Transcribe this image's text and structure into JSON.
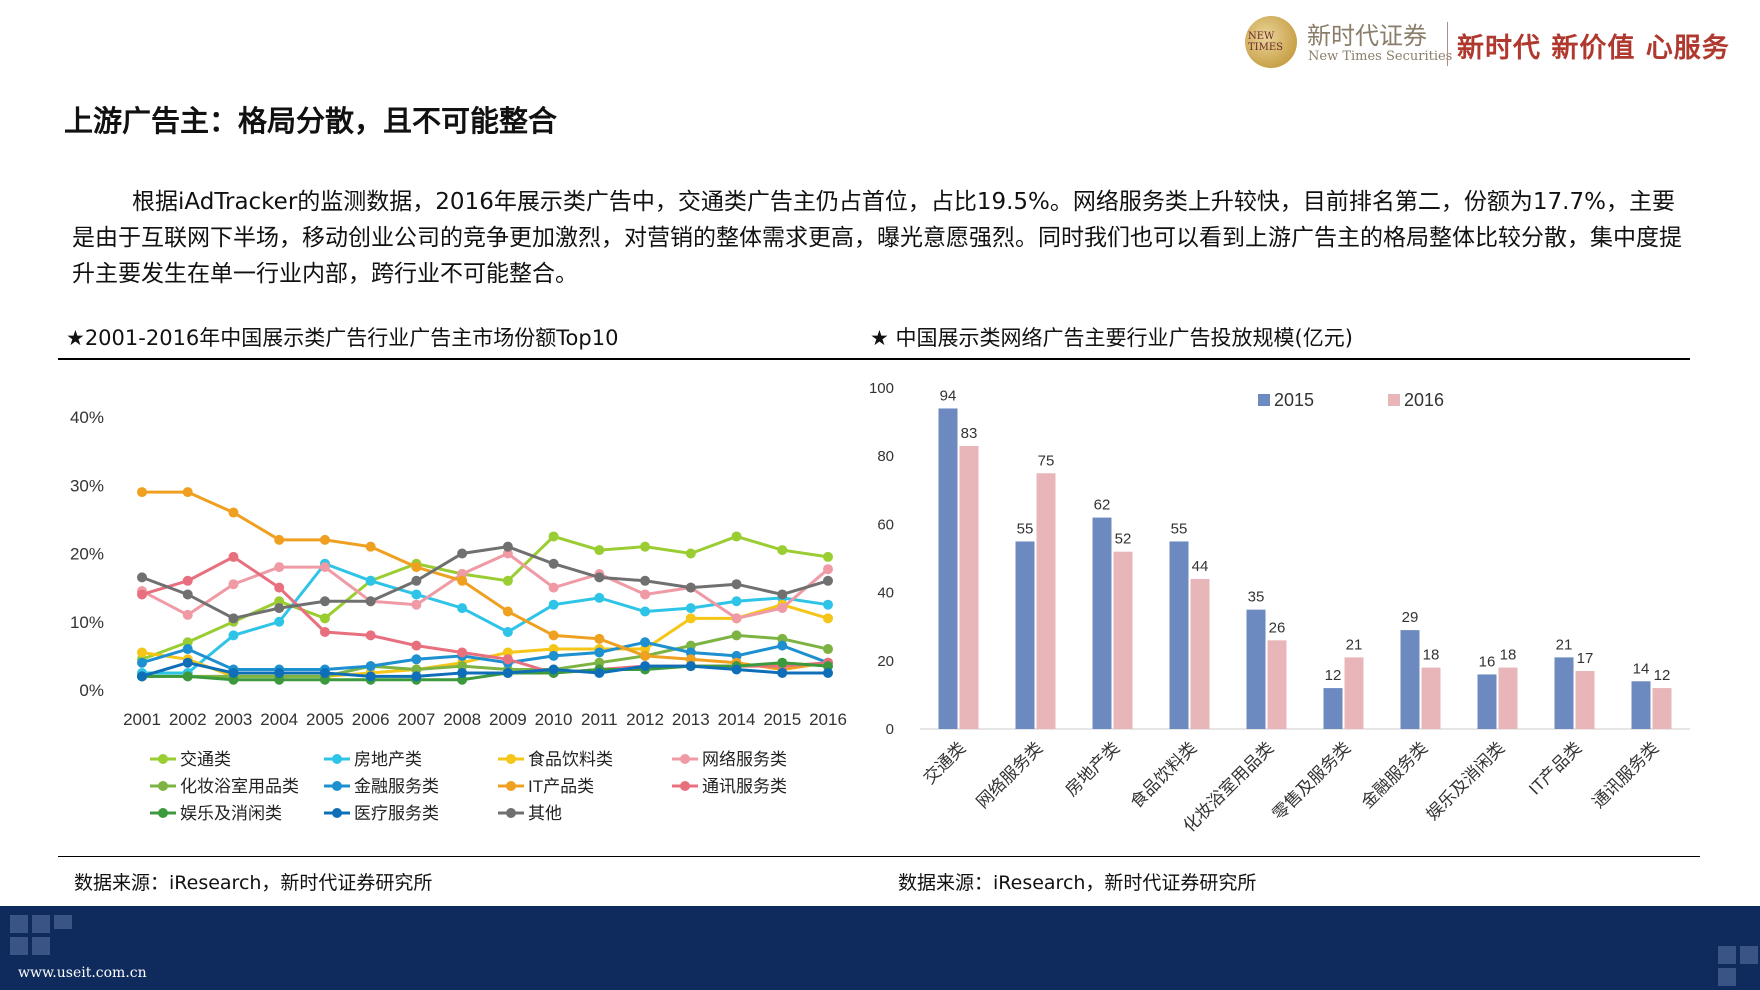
{
  "header": {
    "logo_mark": "NEW TIMES",
    "logo_cn": "新时代证券",
    "logo_en": "New Times Securities",
    "slogan": "新时代 新价值 心服务"
  },
  "title": "上游广告主：格局分散，且不可能整合",
  "paragraph": "根据iAdTracker的监测数据，2016年展示类广告中，交通类广告主仍占首位，占比19.5%。网络服务类上升较快，目前排名第二，份额为17.7%，主要是由于互联网下半场，移动创业公司的竞争更加激烈，对营销的整体需求更高，曝光意愿强烈。同时我们也可以看到上游广告主的格局整体比较分散，集中度提升主要发生在单一行业内部，跨行业不可能整合。",
  "left_chart_title": "★2001-2016年中国展示类广告行业广告主市场份额Top10",
  "right_chart_title": "★ 中国展示类网络广告主要行业广告投放规模(亿元)",
  "left_source": "数据来源：iResearch，新时代证券研究所",
  "right_source": "数据来源：iResearch，新时代证券研究所",
  "footer": {
    "url": "www.useit.com.cn"
  },
  "chart_data": [
    {
      "type": "line",
      "title": "★2001-2016年中国展示类广告行业广告主市场份额Top10",
      "x": [
        "2001",
        "2002",
        "2003",
        "2004",
        "2005",
        "2006",
        "2007",
        "2008",
        "2009",
        "2010",
        "2011",
        "2012",
        "2013",
        "2014",
        "2015",
        "2016"
      ],
      "ylim": [
        0,
        40
      ],
      "yticks": [
        "0%",
        "10%",
        "20%",
        "30%",
        "40%"
      ],
      "grid": false,
      "legend": "bottom",
      "series": [
        {
          "name": "交通类",
          "color": "#9acd32",
          "values": [
            4.5,
            7,
            10,
            13,
            10.5,
            16,
            18.5,
            17,
            16,
            22.5,
            20.5,
            21,
            20,
            22.5,
            20.5,
            19.5
          ]
        },
        {
          "name": "房地产类",
          "color": "#2ec4e8",
          "values": [
            2.5,
            2.5,
            8,
            10,
            18.5,
            16,
            14,
            12,
            8.5,
            12.5,
            13.5,
            11.5,
            12,
            13,
            13.5,
            12.5
          ]
        },
        {
          "name": "食品饮料类",
          "color": "#f5c518",
          "values": [
            5.5,
            4.5,
            2,
            2,
            2,
            2.5,
            3,
            4,
            5.5,
            6,
            6,
            6,
            10.5,
            10.5,
            12.5,
            10.5
          ]
        },
        {
          "name": "网络服务类",
          "color": "#ef9aa5",
          "values": [
            14.5,
            11,
            15.5,
            18,
            18,
            13,
            12.5,
            17,
            20,
            15,
            17,
            14,
            15,
            10.5,
            12,
            17.7
          ]
        },
        {
          "name": "化妆浴室用品类",
          "color": "#7cb342",
          "values": [
            2,
            2,
            2,
            2,
            2,
            3.5,
            3,
            3.5,
            3,
            3,
            4,
            5,
            6.5,
            8,
            7.5,
            6
          ]
        },
        {
          "name": "金融服务类",
          "color": "#1e90d0",
          "values": [
            4,
            6,
            3,
            3,
            3,
            3.5,
            4.5,
            5,
            4,
            5,
            5.5,
            7,
            5.5,
            5,
            6.5,
            4
          ]
        },
        {
          "name": "IT产品类",
          "color": "#f0a020",
          "values": [
            29,
            29,
            26,
            22,
            22,
            21,
            18,
            16,
            11.5,
            8,
            7.5,
            5,
            4.5,
            4,
            3,
            4
          ]
        },
        {
          "name": "通讯服务类",
          "color": "#e8707e",
          "values": [
            14,
            16,
            19.5,
            15,
            8.5,
            8,
            6.5,
            5.5,
            4.5,
            2.5,
            3,
            3.5,
            3.5,
            3.5,
            3.5,
            4
          ]
        },
        {
          "name": "娱乐及消闲类",
          "color": "#3c9a3c",
          "values": [
            2,
            2,
            1.5,
            1.5,
            1.5,
            1.5,
            1.5,
            1.5,
            2.5,
            2.5,
            3,
            3,
            3.5,
            3.5,
            4,
            3.5
          ]
        },
        {
          "name": "医疗服务类",
          "color": "#0e6fb8",
          "values": [
            2,
            4,
            2.5,
            2.5,
            2.5,
            2,
            2,
            2.5,
            2.5,
            3,
            2.5,
            3.5,
            3.5,
            3,
            2.5,
            2.5
          ]
        },
        {
          "name": "其他",
          "color": "#707070",
          "values": [
            16.5,
            14,
            10.5,
            12,
            13,
            13,
            16,
            20,
            21,
            18.5,
            16.5,
            16,
            15,
            15.5,
            14,
            16
          ]
        }
      ]
    },
    {
      "type": "bar",
      "title": "★ 中国展示类网络广告主要行业广告投放规模(亿元)",
      "categories": [
        "交通类",
        "网络服务类",
        "房地产类",
        "食品饮料类",
        "化妆浴室用品类",
        "零售及服务类",
        "金融服务类",
        "娱乐及消闲类",
        "IT产品类",
        "通讯服务类"
      ],
      "ylim": [
        0,
        100
      ],
      "yticks": [
        "0",
        "20",
        "40",
        "60",
        "80",
        "100"
      ],
      "grid": false,
      "legend": "top",
      "series": [
        {
          "name": "2015",
          "color": "#6d8ac0",
          "values": [
            94,
            55,
            62,
            55,
            35,
            12,
            29,
            16,
            21,
            14
          ]
        },
        {
          "name": "2016",
          "color": "#e8b5b8",
          "values": [
            83,
            75,
            52,
            44,
            26,
            21,
            18,
            18,
            17,
            12
          ]
        }
      ]
    }
  ]
}
